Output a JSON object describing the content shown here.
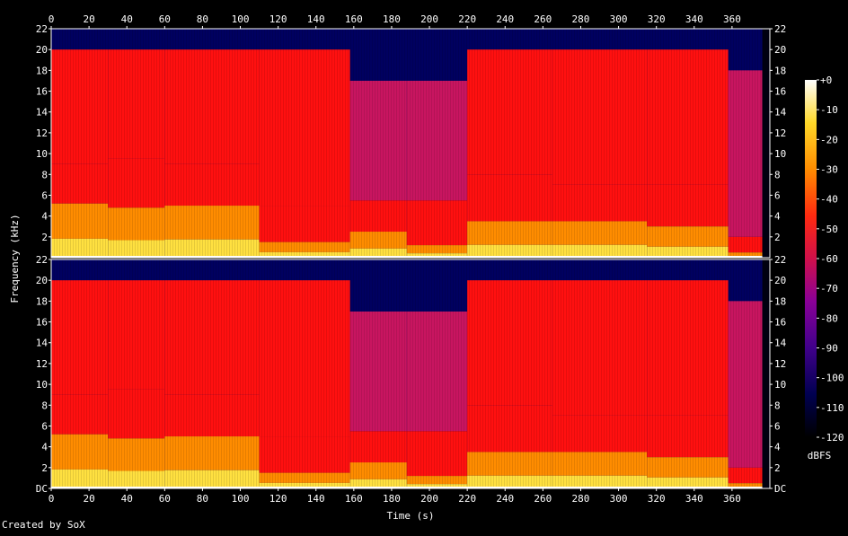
{
  "chart_data": {
    "type": "heatmap",
    "title": "",
    "xlabel": "Time (s)",
    "ylabel": "Frequency (kHz)",
    "colorbar_label": "dBFS",
    "credit": "Created by SoX",
    "x_range": [
      0,
      380
    ],
    "x_ticks": [
      0,
      20,
      40,
      60,
      80,
      100,
      120,
      140,
      160,
      180,
      200,
      220,
      240,
      260,
      280,
      300,
      320,
      340,
      360
    ],
    "y_range": [
      0,
      22
    ],
    "channel_top_yticks": [
      "2",
      "4",
      "6",
      "8",
      "10",
      "12",
      "14",
      "16",
      "18",
      "20",
      "22"
    ],
    "channel_bottom_yticks": [
      "DC",
      "2",
      "4",
      "6",
      "8",
      "10",
      "12",
      "14",
      "16",
      "18",
      "20",
      "22"
    ],
    "color_range": [
      -120,
      0
    ],
    "color_ticks": [
      "+0",
      "-10",
      "-20",
      "-30",
      "-40",
      "-50",
      "-60",
      "-70",
      "-80",
      "-90",
      "-100",
      "-110",
      "-120"
    ],
    "channels": 2,
    "segments": [
      {
        "start": 0,
        "end": 30,
        "low_khz": 5.2,
        "mid_khz": 9,
        "high_khz": 20
      },
      {
        "start": 30,
        "end": 60,
        "low_khz": 4.8,
        "mid_khz": 9.5,
        "high_khz": 20
      },
      {
        "start": 60,
        "end": 110,
        "low_khz": 5.0,
        "mid_khz": 9,
        "high_khz": 20
      },
      {
        "start": 110,
        "end": 158,
        "low_khz": 1.5,
        "mid_khz": 5,
        "high_khz": 20
      },
      {
        "start": 158,
        "end": 188,
        "low_khz": 2.5,
        "mid_khz": 5.5,
        "high_khz": 17
      },
      {
        "start": 188,
        "end": 220,
        "low_khz": 1.2,
        "mid_khz": 5.5,
        "high_khz": 17
      },
      {
        "start": 220,
        "end": 265,
        "low_khz": 3.5,
        "mid_khz": 8,
        "high_khz": 20
      },
      {
        "start": 265,
        "end": 315,
        "low_khz": 3.5,
        "mid_khz": 7,
        "high_khz": 20
      },
      {
        "start": 315,
        "end": 358,
        "low_khz": 3.0,
        "mid_khz": 7,
        "high_khz": 20
      },
      {
        "start": 358,
        "end": 376,
        "low_khz": 0.5,
        "mid_khz": 2,
        "high_khz": 18
      }
    ],
    "colors": {
      "black": "#000000",
      "navy": "#000060",
      "purple": "#6a00a8",
      "magenta": "#c81560",
      "red": "#ff1010",
      "orange": "#ff8c00",
      "yellow": "#ffe040",
      "white": "#ffffff"
    }
  }
}
